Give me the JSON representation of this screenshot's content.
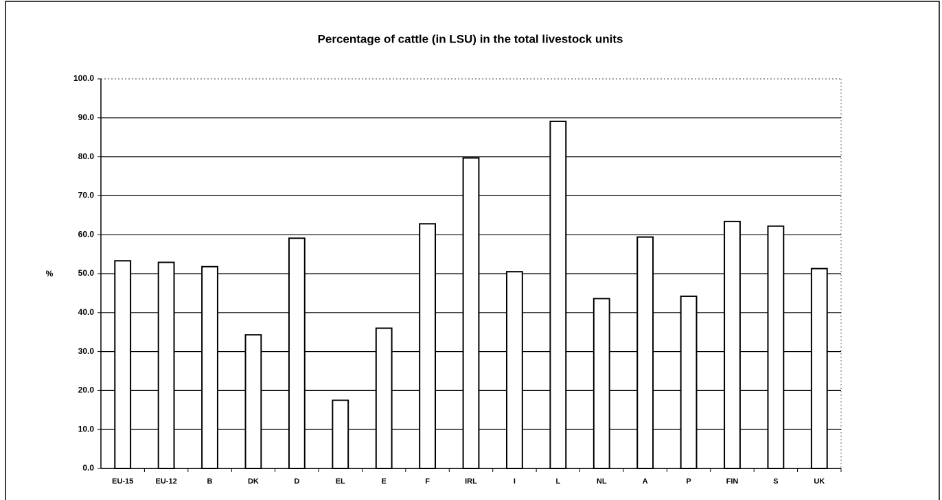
{
  "chart_data": {
    "type": "bar",
    "title": "Percentage of cattle (in LSU) in the total livestock units",
    "y_label": "%",
    "categories": [
      "EU-15",
      "EU-12",
      "B",
      "DK",
      "D",
      "EL",
      "E",
      "F",
      "IRL",
      "I",
      "L",
      "NL",
      "A",
      "P",
      "FIN",
      "S",
      "UK"
    ],
    "values": [
      53.3,
      52.9,
      51.8,
      34.3,
      59.1,
      17.5,
      36.0,
      62.8,
      79.7,
      50.5,
      89.1,
      43.6,
      59.4,
      44.2,
      63.4,
      62.2,
      51.3
    ],
    "color": "#ffffff",
    "ylim": [
      0,
      100
    ],
    "yticks": [
      {
        "value": 0,
        "label": "0.0"
      },
      {
        "value": 10,
        "label": "10.0"
      },
      {
        "value": 20,
        "label": "20.0"
      },
      {
        "value": 30,
        "label": "30.0"
      },
      {
        "value": 40,
        "label": "40.0"
      },
      {
        "value": 50,
        "label": "50.0"
      },
      {
        "value": 60,
        "label": "60.0"
      },
      {
        "value": 70,
        "label": "70.0"
      },
      {
        "value": 80,
        "label": "80.0"
      },
      {
        "value": 90,
        "label": "90.0"
      },
      {
        "value": 100,
        "label": "100.0"
      }
    ],
    "grid": true
  }
}
